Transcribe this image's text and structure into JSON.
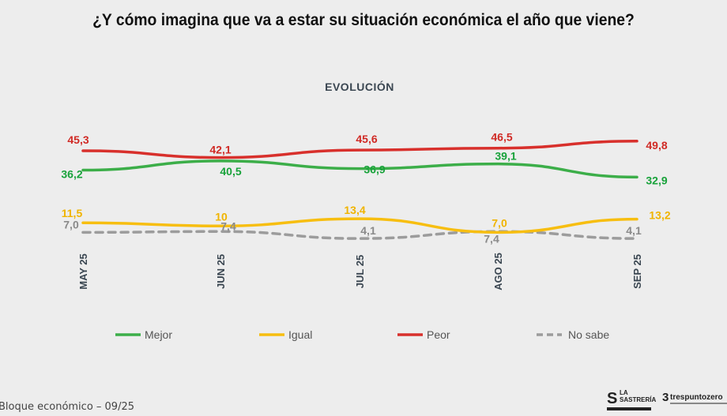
{
  "title": "¿Y cómo imagina que va a estar su situación económica el año que viene?",
  "subtitle": "EVOLUCIÓN",
  "footer": "Bloque económico – 09/25",
  "logos": {
    "left_name": "LA SASTRERÍA",
    "right_name": "trespuntozero"
  },
  "colors": {
    "mejor": "#3cae49",
    "igual": "#f7be10",
    "peor": "#d8302c",
    "no_sabe": "#9c9c9c",
    "mejor_label": "#18a23a",
    "igual_label": "#f0b400",
    "peor_label": "#d02a25",
    "no_sabe_label": "#8a8a8a"
  },
  "chart_data": {
    "type": "line",
    "title": "EVOLUCIÓN",
    "categories": [
      "MAY 25",
      "JUN 25",
      "JUL 25",
      "AGO 25",
      "SEP 25"
    ],
    "series": [
      {
        "name": "Mejor",
        "values": [
          36.2,
          40.5,
          36.9,
          39.1,
          32.9
        ],
        "labels": [
          "36,2",
          "40,5",
          "36,9",
          "39,1",
          "32,9"
        ],
        "style": "solid"
      },
      {
        "name": "Igual",
        "values": [
          11.5,
          10,
          13.4,
          7.0,
          13.2
        ],
        "labels": [
          "11,5",
          "10",
          "13,4",
          "7,0",
          "13,2"
        ],
        "style": "solid"
      },
      {
        "name": "Peor",
        "values": [
          45.3,
          42.1,
          45.6,
          46.5,
          49.8
        ],
        "labels": [
          "45,3",
          "42,1",
          "45,6",
          "46,5",
          "49,8"
        ],
        "style": "solid"
      },
      {
        "name": "No sabe",
        "values": [
          7.0,
          7.4,
          4.1,
          7.4,
          4.1
        ],
        "labels": [
          "7,0",
          "7,4",
          "4,1",
          "7,4",
          "4,1"
        ],
        "style": "dashed"
      }
    ],
    "legend_position": "bottom",
    "grid": false
  }
}
